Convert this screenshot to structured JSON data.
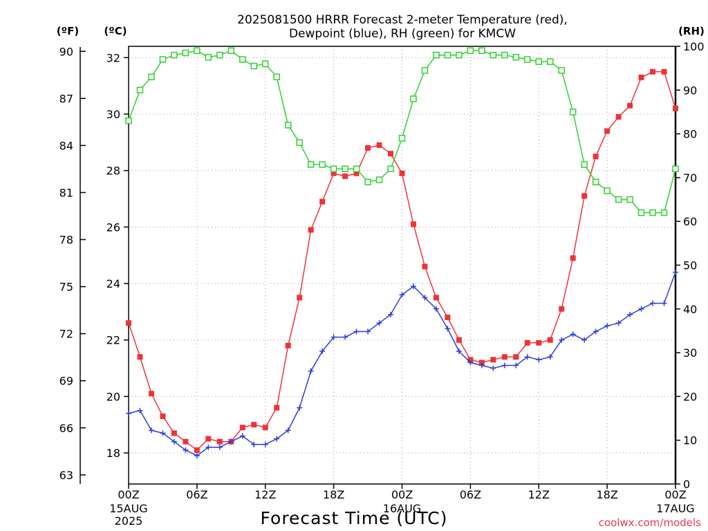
{
  "chart_data": {
    "type": "line",
    "title": "2025081500 HRRR Forecast 2-meter Temperature (red),",
    "subtitle": "Dewpoint (blue), RH (green) for KMCW",
    "xlabel": "Forecast Time (UTC)",
    "credit": "coolwx.com/models",
    "units": {
      "left_f": "(ºF)",
      "left_c": "(ºC)",
      "right": "(RH)"
    },
    "x_start": "2025-08-15 00Z",
    "x_end": "2025-08-17 00Z",
    "x_ticks": [
      {
        "hour": 0,
        "label": "00Z",
        "sub1": "15AUG",
        "sub2": "2025"
      },
      {
        "hour": 6,
        "label": "06Z",
        "sub1": "",
        "sub2": ""
      },
      {
        "hour": 12,
        "label": "12Z",
        "sub1": "",
        "sub2": ""
      },
      {
        "hour": 18,
        "label": "18Z",
        "sub1": "",
        "sub2": ""
      },
      {
        "hour": 24,
        "label": "00Z",
        "sub1": "16AUG",
        "sub2": ""
      },
      {
        "hour": 30,
        "label": "06Z",
        "sub1": "",
        "sub2": ""
      },
      {
        "hour": 36,
        "label": "12Z",
        "sub1": "",
        "sub2": ""
      },
      {
        "hour": 42,
        "label": "18Z",
        "sub1": "",
        "sub2": ""
      },
      {
        "hour": 48,
        "label": "00Z",
        "sub1": "17AUG",
        "sub2": ""
      }
    ],
    "c_range": [
      16.9,
      32.4
    ],
    "c_ticks": [
      18,
      20,
      22,
      24,
      26,
      28,
      30,
      32
    ],
    "f_ticks": [
      63,
      66,
      69,
      72,
      75,
      78,
      81,
      84,
      87,
      90
    ],
    "rh_range": [
      0,
      100
    ],
    "rh_ticks": [
      0,
      10,
      20,
      30,
      40,
      50,
      60,
      70,
      80,
      90,
      100
    ],
    "grid": true,
    "series": [
      {
        "name": "Temperature",
        "color": "#ee3338",
        "marker": "filled-square",
        "axis": "celsius",
        "values": [
          22.6,
          21.4,
          20.1,
          19.3,
          18.7,
          18.4,
          18.1,
          18.5,
          18.4,
          18.4,
          18.9,
          19.0,
          18.9,
          19.6,
          21.8,
          23.5,
          25.9,
          26.9,
          27.9,
          27.8,
          27.9,
          28.8,
          28.9,
          28.6,
          27.9,
          26.1,
          24.6,
          23.5,
          22.8,
          22.0,
          21.3,
          21.2,
          21.3,
          21.4,
          21.4,
          21.9,
          21.9,
          22.0,
          23.1,
          24.9,
          27.1,
          28.5,
          29.4,
          29.9,
          30.3,
          31.3,
          31.5,
          31.5,
          30.2
        ]
      },
      {
        "name": "Dewpoint",
        "color": "#2c3fd6",
        "marker": "plus",
        "axis": "celsius",
        "values": [
          19.4,
          19.5,
          18.8,
          18.7,
          18.4,
          18.1,
          17.9,
          18.2,
          18.2,
          18.4,
          18.6,
          18.3,
          18.3,
          18.5,
          18.8,
          19.6,
          20.9,
          21.6,
          22.1,
          22.1,
          22.3,
          22.3,
          22.6,
          22.9,
          23.6,
          23.9,
          23.5,
          23.1,
          22.4,
          21.6,
          21.2,
          21.1,
          21.0,
          21.1,
          21.1,
          21.4,
          21.3,
          21.4,
          22.0,
          22.2,
          22.0,
          22.3,
          22.5,
          22.6,
          22.9,
          23.1,
          23.3,
          23.3,
          24.4
        ]
      },
      {
        "name": "RH",
        "color": "#2ed12e",
        "marker": "open-square",
        "axis": "rh",
        "values": [
          83,
          90,
          93,
          97,
          98,
          98.5,
          99,
          97.5,
          98,
          99,
          97,
          95.5,
          96,
          93,
          82,
          78,
          73,
          73,
          72,
          72,
          72,
          69,
          69.5,
          72,
          79,
          88,
          94.5,
          98,
          98,
          98,
          99,
          99,
          98,
          98,
          97.5,
          97,
          96.5,
          96.5,
          94.5,
          85,
          73,
          69,
          67,
          65,
          65,
          62,
          62,
          62,
          72
        ]
      }
    ]
  }
}
